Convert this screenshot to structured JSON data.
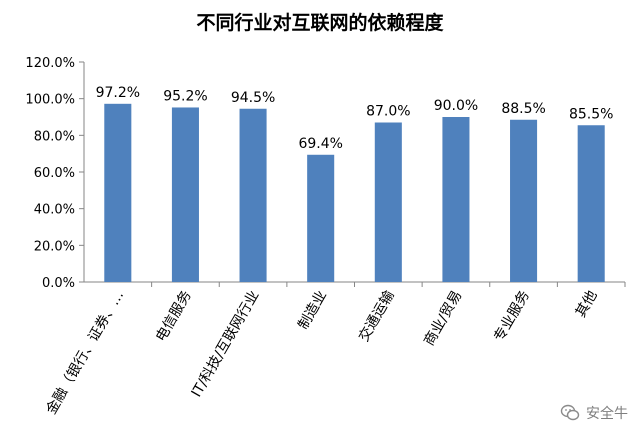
{
  "chart_data": {
    "type": "bar",
    "title": "不同行业对互联网的依赖程度",
    "categories": [
      "金融（银行、证券、…",
      "电信服务",
      "IT/科技/互联网行业",
      "制造业",
      "交通运输",
      "商业/贸易",
      "专业服务",
      "其他"
    ],
    "values": [
      97.2,
      95.2,
      94.5,
      69.4,
      87.0,
      90.0,
      88.5,
      85.5
    ],
    "data_labels": [
      "97.2%",
      "95.2%",
      "94.5%",
      "69.4%",
      "87.0%",
      "90.0%",
      "88.5%",
      "85.5%"
    ],
    "y_ticks": [
      "0.0%",
      "20.0%",
      "40.0%",
      "60.0%",
      "80.0%",
      "100.0%",
      "120.0%"
    ],
    "ylim": [
      0,
      120
    ],
    "xlabel": "",
    "ylabel": "",
    "grid": false,
    "bar_color": "#4f81bd",
    "axis_color": "#868686"
  },
  "watermark": {
    "text": "安全牛",
    "icon": "wechat-icon"
  }
}
